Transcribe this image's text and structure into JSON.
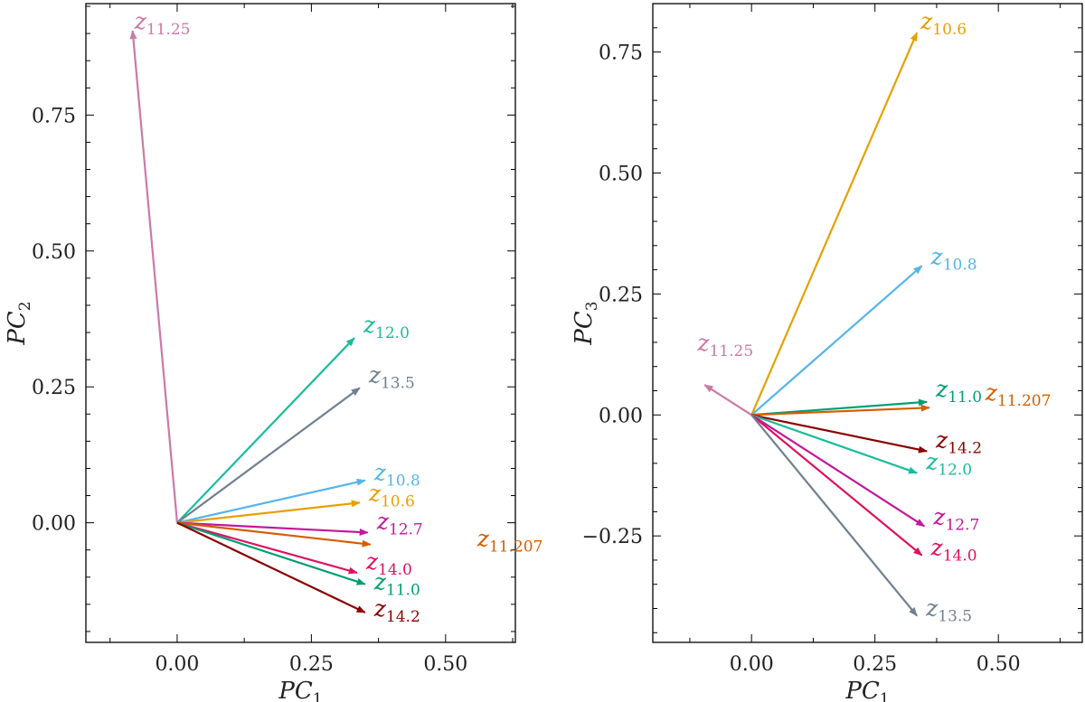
{
  "chart_data": [
    {
      "type": "vector-biplot",
      "xlabel": "PC",
      "xlabel_sub": "1",
      "ylabel": "PC",
      "ylabel_sub": "2",
      "xlim": [
        -0.17,
        0.63
      ],
      "ylim": [
        -0.22,
        0.955
      ],
      "xticks": [
        0.0,
        0.25,
        0.5
      ],
      "xtick_labels": [
        "0.00",
        "0.25",
        "0.50"
      ],
      "yticks": [
        0.0,
        0.25,
        0.5,
        0.75
      ],
      "ytick_labels": [
        "0.00",
        "0.25",
        "0.50",
        "0.75"
      ],
      "vectors": [
        {
          "name": "z",
          "sub": "11.25",
          "x": -0.083,
          "y": 0.905,
          "color": "#cc79a7"
        },
        {
          "name": "z",
          "sub": "12.0",
          "x": 0.33,
          "y": 0.34,
          "color": "#1abc9c"
        },
        {
          "name": "z",
          "sub": "13.5",
          "x": 0.34,
          "y": 0.248,
          "color": "#708090"
        },
        {
          "name": "z",
          "sub": "10.8",
          "x": 0.35,
          "y": 0.078,
          "color": "#56b4e9"
        },
        {
          "name": "z",
          "sub": "10.6",
          "x": 0.34,
          "y": 0.037,
          "color": "#e6a000"
        },
        {
          "name": "z",
          "sub": "12.7",
          "x": 0.355,
          "y": -0.018,
          "color": "#c2189b"
        },
        {
          "name": "z",
          "sub": "11.207",
          "x": 0.36,
          "y": -0.04,
          "color": "#d55e00"
        },
        {
          "name": "z",
          "sub": "14.0",
          "x": 0.335,
          "y": -0.092,
          "color": "#e0115f"
        },
        {
          "name": "z",
          "sub": "11.0",
          "x": 0.35,
          "y": -0.113,
          "color": "#009e73"
        },
        {
          "name": "z",
          "sub": "14.2",
          "x": 0.35,
          "y": -0.165,
          "color": "#8b0000"
        }
      ]
    },
    {
      "type": "vector-biplot",
      "xlabel": "PC",
      "xlabel_sub": "1",
      "ylabel": "PC",
      "ylabel_sub": "3",
      "xlim": [
        -0.2,
        0.67
      ],
      "ylim": [
        -0.47,
        0.85
      ],
      "xticks": [
        0.0,
        0.25,
        0.5
      ],
      "xtick_labels": [
        "0.00",
        "0.25",
        "0.50"
      ],
      "yticks": [
        -0.25,
        0.0,
        0.25,
        0.5,
        0.75
      ],
      "ytick_labels": [
        "−0.25",
        "0.00",
        "0.25",
        "0.50",
        "0.75"
      ],
      "vectors": [
        {
          "name": "z",
          "sub": "10.6",
          "x": 0.335,
          "y": 0.79,
          "color": "#e6a000"
        },
        {
          "name": "z",
          "sub": "10.8",
          "x": 0.345,
          "y": 0.308,
          "color": "#56b4e9"
        },
        {
          "name": "z",
          "sub": "11.25",
          "x": -0.095,
          "y": 0.062,
          "color": "#cc79a7"
        },
        {
          "name": "z",
          "sub": "11.0",
          "x": 0.355,
          "y": 0.027,
          "color": "#009e73"
        },
        {
          "name": "z",
          "sub": "11.207",
          "x": 0.36,
          "y": 0.015,
          "color": "#d55e00"
        },
        {
          "name": "z",
          "sub": "14.2",
          "x": 0.355,
          "y": -0.075,
          "color": "#8b0000"
        },
        {
          "name": "z",
          "sub": "12.0",
          "x": 0.335,
          "y": -0.12,
          "color": "#1abc9c"
        },
        {
          "name": "z",
          "sub": "12.7",
          "x": 0.35,
          "y": -0.23,
          "color": "#c2189b"
        },
        {
          "name": "z",
          "sub": "14.0",
          "x": 0.345,
          "y": -0.29,
          "color": "#e0115f"
        },
        {
          "name": "z",
          "sub": "13.5",
          "x": 0.335,
          "y": -0.415,
          "color": "#708090"
        }
      ]
    }
  ]
}
